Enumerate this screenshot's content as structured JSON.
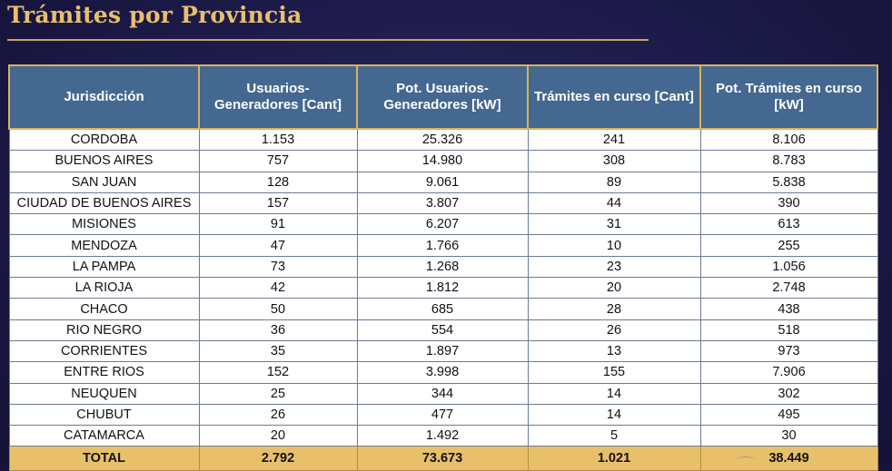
{
  "title": "Trámites por Provincia",
  "table": {
    "headers": [
      "Jurisdicción",
      "Usuarios-Generadores [Cant]",
      "Pot. Usuarios-Generadores [kW]",
      "Trámites en curso [Cant]",
      "Pot. Trámites en curso [kW]"
    ],
    "rows": [
      [
        "CORDOBA",
        "1.153",
        "25.326",
        "241",
        "8.106"
      ],
      [
        "BUENOS AIRES",
        "757",
        "14.980",
        "308",
        "8.783"
      ],
      [
        "SAN JUAN",
        "128",
        "9.061",
        "89",
        "5.838"
      ],
      [
        "CIUDAD DE BUENOS AIRES",
        "157",
        "3.807",
        "44",
        "390"
      ],
      [
        "MISIONES",
        "91",
        "6.207",
        "31",
        "613"
      ],
      [
        "MENDOZA",
        "47",
        "1.766",
        "10",
        "255"
      ],
      [
        "LA PAMPA",
        "73",
        "1.268",
        "23",
        "1.056"
      ],
      [
        "LA RIOJA",
        "42",
        "1.812",
        "20",
        "2.748"
      ],
      [
        "CHACO",
        "50",
        "685",
        "28",
        "438"
      ],
      [
        "RIO NEGRO",
        "36",
        "554",
        "26",
        "518"
      ],
      [
        "CORRIENTES",
        "35",
        "1.897",
        "13",
        "973"
      ],
      [
        "ENTRE RIOS",
        "152",
        "3.998",
        "155",
        "7.906"
      ],
      [
        "NEUQUEN",
        "25",
        "344",
        "14",
        "302"
      ],
      [
        "CHUBUT",
        "26",
        "477",
        "14",
        "495"
      ],
      [
        "CATAMARCA",
        "20",
        "1.492",
        "5",
        "30"
      ]
    ],
    "total": [
      "TOTAL",
      "2.792",
      "73.673",
      "1.021",
      "38.449"
    ]
  },
  "colors": {
    "background": "#1c1a48",
    "title": "#e8bf6e",
    "header_bg": "#44688f",
    "header_border": "#d9b25e",
    "total_bg": "#e9c06a"
  }
}
